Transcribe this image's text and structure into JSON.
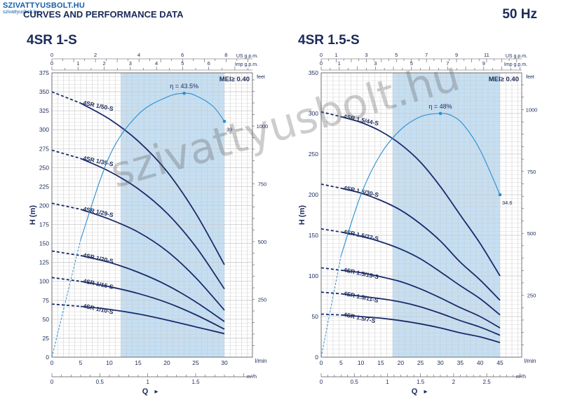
{
  "header": {
    "logo_text": "SZIVATTYUSBOLT.HU",
    "logo_subtext": "szivattyusbolt.hu",
    "title": "CURVES AND PERFORMANCE DATA",
    "frequency": "50 Hz"
  },
  "watermark": "szivattyusbolt.hu",
  "colors": {
    "curve": "#1b2a6b",
    "efficiency": "#2a8fd0",
    "band": "#c5dff3",
    "grid": "#c9c9c9",
    "text": "#1a2a5a"
  },
  "chart_data": [
    {
      "type": "line",
      "title": "4SR 1-S",
      "mei": "MEI≥ 0.40",
      "xlabel": "Q",
      "ylabel": "H (m)",
      "unit_q": "l/min",
      "unit_m3h": "m³/h",
      "unit_usgpm": "US g.p.m.",
      "unit_impgpm": "Imp g.p.m.",
      "unit_feet": "feet",
      "xlim": [
        0,
        30
      ],
      "ylim": [
        0,
        375
      ],
      "x_ticks": [
        0,
        5,
        10,
        15,
        20,
        25,
        30
      ],
      "y_ticks": [
        0,
        25,
        50,
        75,
        100,
        125,
        150,
        175,
        200,
        225,
        250,
        275,
        300,
        325,
        350,
        375
      ],
      "m3h_ticks": [
        {
          "v": 0,
          "label": "0"
        },
        {
          "v": 0.5,
          "label": "0.5"
        },
        {
          "v": 1,
          "label": "1"
        },
        {
          "v": 1.5,
          "label": "1.5"
        }
      ],
      "usgpm_ticks": [
        {
          "v": 0,
          "label": "0"
        },
        {
          "v": 2,
          "label": "2"
        },
        {
          "v": 4,
          "label": "4"
        },
        {
          "v": 6,
          "label": "6"
        },
        {
          "v": 8,
          "label": "8"
        }
      ],
      "impgpm_ticks": [
        {
          "v": 0,
          "label": "0"
        },
        {
          "v": 1,
          "label": "1"
        },
        {
          "v": 2,
          "label": "2"
        },
        {
          "v": 3,
          "label": "3"
        },
        {
          "v": 4,
          "label": "4"
        },
        {
          "v": 5,
          "label": "5"
        },
        {
          "v": 6,
          "label": "6"
        }
      ],
      "feet_ticks": [
        {
          "v": 250,
          "label": "250"
        },
        {
          "v": 500,
          "label": "500"
        },
        {
          "v": 750,
          "label": "750"
        },
        {
          "v": 1000,
          "label": "1000"
        }
      ],
      "band": [
        12,
        30
      ],
      "series": [
        {
          "name": "4SR 1/50-S",
          "x": [
            0,
            5,
            10,
            15,
            20,
            25,
            30
          ],
          "y": [
            350,
            335,
            314,
            285,
            245,
            190,
            122
          ]
        },
        {
          "name": "4SR 1/39-S",
          "x": [
            0,
            5,
            10,
            15,
            20,
            25,
            30
          ],
          "y": [
            273,
            262,
            245,
            222,
            190,
            146,
            90
          ]
        },
        {
          "name": "4SR 1/29-S",
          "x": [
            0,
            5,
            10,
            15,
            20,
            25,
            30
          ],
          "y": [
            203,
            195,
            182,
            165,
            140,
            105,
            62
          ]
        },
        {
          "name": "4SR 1/20-S",
          "x": [
            0,
            5,
            10,
            15,
            20,
            25,
            30
          ],
          "y": [
            140,
            134,
            125,
            112,
            95,
            73,
            47
          ]
        },
        {
          "name": "4SR 1/15-S",
          "x": [
            0,
            5,
            10,
            15,
            20,
            25,
            30
          ],
          "y": [
            105,
            100,
            93,
            84,
            72,
            56,
            37
          ]
        },
        {
          "name": "4SR 1/10-S",
          "x": [
            0,
            5,
            10,
            15,
            20,
            25,
            30
          ],
          "y": [
            70,
            67,
            63,
            57,
            49,
            40,
            31
          ]
        }
      ],
      "dashed_until_x": 5,
      "efficiency": {
        "label": "η = 43.5%",
        "end_label": "39",
        "x": [
          0,
          5,
          10,
          15,
          20,
          23,
          25,
          28,
          30
        ],
        "y": [
          0,
          155,
          265,
          320,
          343,
          348,
          345,
          331,
          311
        ]
      }
    },
    {
      "type": "line",
      "title": "4SR 1.5-S",
      "mei": "MEI≥ 0.40",
      "xlabel": "Q",
      "ylabel": "H (m)",
      "unit_q": "l/min",
      "unit_m3h": "m³/h",
      "unit_usgpm": "US g.p.m.",
      "unit_impgpm": "Imp g.p.m.",
      "unit_feet": "feet",
      "xlim": [
        0,
        45
      ],
      "ylim": [
        0,
        350
      ],
      "x_ticks": [
        0,
        5,
        10,
        15,
        20,
        25,
        30,
        35,
        40,
        45
      ],
      "y_ticks": [
        0,
        50,
        100,
        150,
        200,
        250,
        300,
        350
      ],
      "m3h_ticks": [
        {
          "v": 0,
          "label": "0"
        },
        {
          "v": 0.5,
          "label": "0.5"
        },
        {
          "v": 1,
          "label": "1"
        },
        {
          "v": 1.5,
          "label": "1.5"
        },
        {
          "v": 2,
          "label": "2"
        },
        {
          "v": 2.5,
          "label": "2.5"
        }
      ],
      "usgpm_ticks": [
        {
          "v": 0,
          "label": "0"
        },
        {
          "v": 1,
          "label": "1"
        },
        {
          "v": 3,
          "label": "3"
        },
        {
          "v": 5,
          "label": "5"
        },
        {
          "v": 7,
          "label": "7"
        },
        {
          "v": 9,
          "label": "9"
        },
        {
          "v": 11,
          "label": "11"
        }
      ],
      "impgpm_ticks": [
        {
          "v": 0,
          "label": "0"
        },
        {
          "v": 1,
          "label": "1"
        },
        {
          "v": 3,
          "label": "3"
        },
        {
          "v": 5,
          "label": "5"
        },
        {
          "v": 7,
          "label": "7"
        },
        {
          "v": 9,
          "label": "9"
        }
      ],
      "feet_ticks": [
        {
          "v": 250,
          "label": "250"
        },
        {
          "v": 500,
          "label": "500"
        },
        {
          "v": 750,
          "label": "750"
        },
        {
          "v": 1000,
          "label": "1000"
        }
      ],
      "band": [
        18,
        45
      ],
      "series": [
        {
          "name": "4SR 1.5/44-S",
          "x": [
            0,
            5,
            10,
            15,
            20,
            25,
            30,
            35,
            40,
            45
          ],
          "y": [
            302,
            296,
            289,
            278,
            262,
            240,
            210,
            175,
            140,
            100
          ]
        },
        {
          "name": "4SR 1.5/30-S",
          "x": [
            0,
            5,
            10,
            15,
            20,
            25,
            30,
            35,
            40,
            45
          ],
          "y": [
            213,
            208,
            202,
            193,
            181,
            164,
            143,
            117,
            95,
            70
          ]
        },
        {
          "name": "4SR 1.5/22-S",
          "x": [
            0,
            5,
            10,
            15,
            20,
            25,
            30,
            35,
            40,
            45
          ],
          "y": [
            158,
            154,
            149,
            142,
            133,
            121,
            105,
            88,
            72,
            52
          ]
        },
        {
          "name": "4SR 1.5/15-S",
          "x": [
            0,
            5,
            10,
            15,
            20,
            25,
            30,
            35,
            40,
            45
          ],
          "y": [
            110,
            107,
            104,
            99,
            93,
            84,
            73,
            61,
            50,
            36
          ]
        },
        {
          "name": "4SR 1.5/11-S",
          "x": [
            0,
            5,
            10,
            15,
            20,
            25,
            30,
            35,
            40,
            45
          ],
          "y": [
            80,
            78,
            75,
            72,
            68,
            62,
            54,
            45,
            37,
            27
          ]
        },
        {
          "name": "4SR 1.5/7-S",
          "x": [
            0,
            5,
            10,
            15,
            20,
            25,
            30,
            35,
            40,
            45
          ],
          "y": [
            53,
            52,
            50,
            48,
            45,
            41,
            36,
            30,
            25,
            18
          ]
        }
      ],
      "dashed_until_x": 5,
      "efficiency": {
        "label": "η = 48%",
        "end_label": "34.6",
        "x": [
          0,
          5,
          10,
          15,
          20,
          25,
          30,
          33,
          36,
          40,
          45
        ],
        "y": [
          0,
          125,
          200,
          250,
          280,
          296,
          300,
          297,
          285,
          255,
          200
        ]
      }
    }
  ]
}
